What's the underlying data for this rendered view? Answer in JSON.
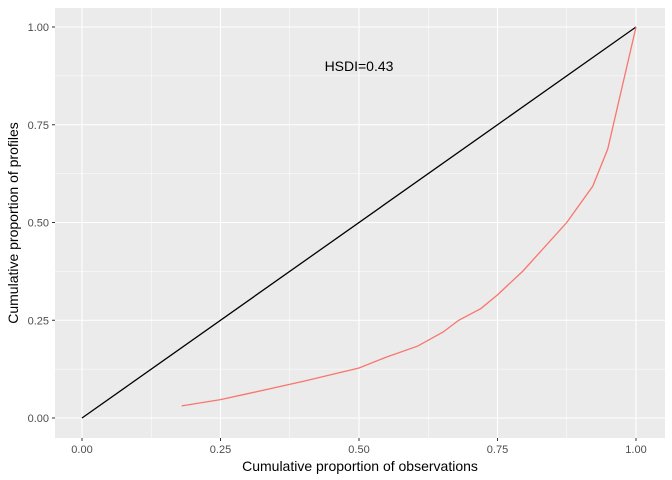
{
  "chart_data": {
    "type": "line",
    "title": "",
    "xlabel": "Cumulative proportion of observations",
    "ylabel": "Cumulative proportion of profiles",
    "xlim": [
      -0.05,
      1.05
    ],
    "ylim": [
      -0.05,
      1.05
    ],
    "xticks": [
      "0.00",
      "0.25",
      "0.50",
      "0.75",
      "1.00"
    ],
    "yticks": [
      "0.00",
      "0.25",
      "0.50",
      "0.75",
      "1.00"
    ],
    "grid": true,
    "annotation": {
      "text": "HSDI=0.43",
      "x": 0.5,
      "y": 0.9
    },
    "series": [
      {
        "color": "#000000",
        "x": [
          0,
          1
        ],
        "y": [
          0,
          1
        ]
      },
      {
        "color": "#F8766D",
        "x": [
          0.18,
          0.25,
          0.3,
          0.4,
          0.5,
          0.55,
          0.606,
          0.652,
          0.68,
          0.72,
          0.75,
          0.796,
          0.875,
          0.922,
          0.949,
          1.0
        ],
        "y": [
          0.031,
          0.047,
          0.0625,
          0.094,
          0.128,
          0.156,
          0.184,
          0.22,
          0.25,
          0.28,
          0.315,
          0.376,
          0.5,
          0.593,
          0.688,
          1.0
        ]
      }
    ]
  }
}
